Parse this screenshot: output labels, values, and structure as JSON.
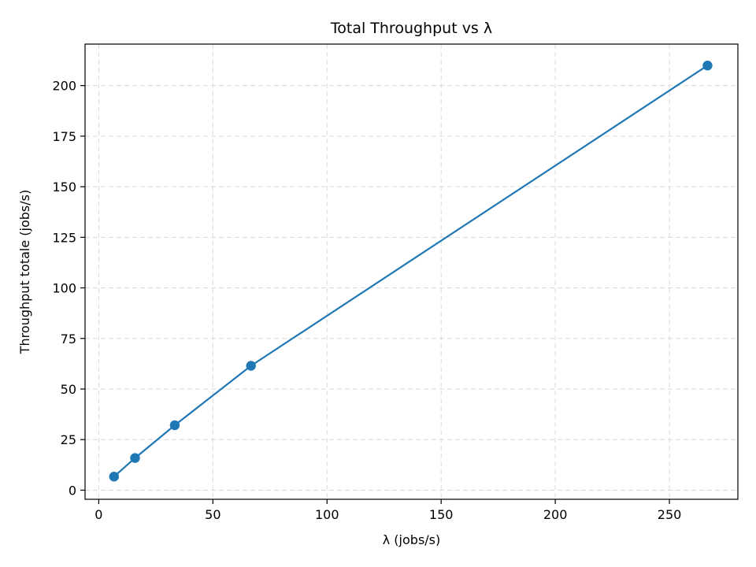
{
  "chart_data": {
    "type": "line",
    "title": "Total Throughput vs λ",
    "xlabel": "λ (jobs/s)",
    "ylabel": "Throughput totale (jobs/s)",
    "xlim": [
      -6,
      280
    ],
    "ylim": [
      -4.5,
      220.5
    ],
    "xticks": [
      0,
      50,
      100,
      150,
      200,
      250
    ],
    "yticks": [
      0,
      25,
      50,
      75,
      100,
      125,
      150,
      175,
      200
    ],
    "grid": true,
    "legend": "none",
    "colors": {
      "series": "#1f77b4",
      "grid": "#d9d9d9",
      "axes": "#000000"
    },
    "series": [
      {
        "x": [
          6.7,
          15.9,
          33.3,
          66.7,
          266.7
        ],
        "y": [
          6.7,
          15.9,
          32.1,
          61.5,
          209.9
        ],
        "marker": "circle"
      }
    ]
  }
}
